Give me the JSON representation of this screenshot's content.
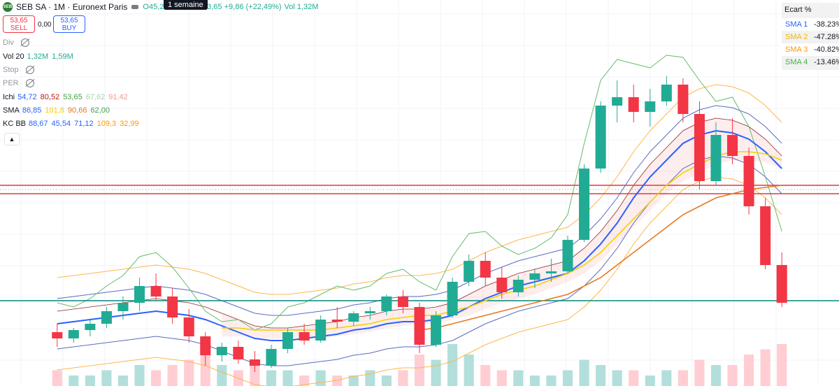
{
  "header": {
    "title": "SEB SA · 1M · Euronext Paris",
    "ohlc_text": "O45,26 H56,38 C53,65 +9,86 (+22,49%)",
    "vol_label": "Vol",
    "vol_value": "1,32M",
    "tooltip": "1 semaine",
    "logo_text": "SEB"
  },
  "trade": {
    "sell_price": "53,65",
    "sell_label": "SELL",
    "spread": "0,00",
    "buy_price": "53,65",
    "buy_label": "BUY"
  },
  "indicators": {
    "div": {
      "name": "Div"
    },
    "vol20": {
      "name": "Vol 20",
      "v1": "1,32M",
      "v2": "1,59M"
    },
    "stop": {
      "name": "Stop"
    },
    "per": {
      "name": "PER"
    },
    "ichi": {
      "name": "Ichi",
      "v1": "54,72",
      "v2": "80,52",
      "v3": "53,65",
      "v4": "67,62",
      "v5": "91,42"
    },
    "sma": {
      "name": "SMA",
      "v1": "86,85",
      "v2": "101,8",
      "v3": "90,66",
      "v4": "62,00"
    },
    "kcbb": {
      "name": "KC BB",
      "v1": "88,67",
      "v2": "45,54",
      "v3": "71,12",
      "v4": "109,3",
      "v5": "32,99"
    }
  },
  "expand_icon": "chevron-up-icon",
  "ecart": {
    "title": "Ecart %",
    "rows": [
      {
        "name": "SMA 1",
        "value": "-38.23%",
        "color": "#2962ff"
      },
      {
        "name": "SMA 2",
        "value": "-47.28%",
        "color": "#f5b400"
      },
      {
        "name": "SMA 3",
        "value": "-40.82%",
        "color": "#ff9800"
      },
      {
        "name": "SMA 4",
        "value": "-13.46%",
        "color": "#4caf50"
      }
    ]
  },
  "colors": {
    "up": "#22ab94",
    "down": "#f23645",
    "sma1": "#2962ff",
    "sma2": "#f5d000",
    "sma3": "#e8791e",
    "hline_red": "#e53935",
    "hline_green": "#00897b"
  },
  "chart_data": {
    "type": "candlestick",
    "period": "monthly",
    "ylim": [
      20,
      175
    ],
    "horizontal_levels": [
      {
        "value": 110,
        "color": "red"
      },
      {
        "value": 106,
        "color": "red"
      },
      {
        "value": 55,
        "color": "green"
      }
    ],
    "candles": [
      {
        "o": 40,
        "h": 44,
        "l": 33,
        "c": 37
      },
      {
        "o": 37,
        "h": 42,
        "l": 35,
        "c": 41
      },
      {
        "o": 41,
        "h": 46,
        "l": 38,
        "c": 44
      },
      {
        "o": 44,
        "h": 52,
        "l": 42,
        "c": 50
      },
      {
        "o": 50,
        "h": 57,
        "l": 46,
        "c": 54
      },
      {
        "o": 54,
        "h": 66,
        "l": 50,
        "c": 62
      },
      {
        "o": 62,
        "h": 68,
        "l": 55,
        "c": 57
      },
      {
        "o": 57,
        "h": 61,
        "l": 44,
        "c": 47
      },
      {
        "o": 47,
        "h": 51,
        "l": 35,
        "c": 38
      },
      {
        "o": 38,
        "h": 40,
        "l": 24,
        "c": 29
      },
      {
        "o": 29,
        "h": 35,
        "l": 26,
        "c": 33
      },
      {
        "o": 33,
        "h": 36,
        "l": 25,
        "c": 27
      },
      {
        "o": 27,
        "h": 31,
        "l": 21,
        "c": 24
      },
      {
        "o": 24,
        "h": 34,
        "l": 23,
        "c": 32
      },
      {
        "o": 32,
        "h": 42,
        "l": 30,
        "c": 40
      },
      {
        "o": 40,
        "h": 44,
        "l": 34,
        "c": 36
      },
      {
        "o": 36,
        "h": 48,
        "l": 35,
        "c": 46
      },
      {
        "o": 46,
        "h": 52,
        "l": 42,
        "c": 45
      },
      {
        "o": 45,
        "h": 50,
        "l": 43,
        "c": 49
      },
      {
        "o": 49,
        "h": 52,
        "l": 46,
        "c": 50
      },
      {
        "o": 50,
        "h": 58,
        "l": 48,
        "c": 57
      },
      {
        "o": 57,
        "h": 60,
        "l": 49,
        "c": 52
      },
      {
        "o": 52,
        "h": 54,
        "l": 30,
        "c": 34
      },
      {
        "o": 34,
        "h": 50,
        "l": 33,
        "c": 48
      },
      {
        "o": 48,
        "h": 66,
        "l": 47,
        "c": 64
      },
      {
        "o": 64,
        "h": 77,
        "l": 62,
        "c": 74
      },
      {
        "o": 74,
        "h": 78,
        "l": 62,
        "c": 66
      },
      {
        "o": 66,
        "h": 71,
        "l": 56,
        "c": 59
      },
      {
        "o": 59,
        "h": 67,
        "l": 57,
        "c": 65
      },
      {
        "o": 65,
        "h": 70,
        "l": 61,
        "c": 68
      },
      {
        "o": 68,
        "h": 75,
        "l": 64,
        "c": 69
      },
      {
        "o": 69,
        "h": 86,
        "l": 68,
        "c": 84
      },
      {
        "o": 84,
        "h": 120,
        "l": 83,
        "c": 118
      },
      {
        "o": 118,
        "h": 150,
        "l": 116,
        "c": 148
      },
      {
        "o": 148,
        "h": 160,
        "l": 140,
        "c": 152
      },
      {
        "o": 152,
        "h": 158,
        "l": 140,
        "c": 145
      },
      {
        "o": 145,
        "h": 156,
        "l": 138,
        "c": 150
      },
      {
        "o": 150,
        "h": 162,
        "l": 148,
        "c": 158
      },
      {
        "o": 158,
        "h": 161,
        "l": 140,
        "c": 144
      },
      {
        "o": 144,
        "h": 150,
        "l": 108,
        "c": 112
      },
      {
        "o": 112,
        "h": 140,
        "l": 110,
        "c": 134
      },
      {
        "o": 134,
        "h": 142,
        "l": 120,
        "c": 124
      },
      {
        "o": 124,
        "h": 128,
        "l": 96,
        "c": 100
      },
      {
        "o": 100,
        "h": 104,
        "l": 70,
        "c": 72
      },
      {
        "o": 72,
        "h": 78,
        "l": 52,
        "c": 54
      }
    ],
    "series": [
      {
        "name": "SMA 1",
        "values": [
          44,
          45,
          46,
          47,
          48,
          49,
          50,
          49,
          48,
          46,
          43,
          40,
          37,
          36,
          36,
          37,
          38,
          39,
          41,
          42,
          44,
          45,
          45,
          46,
          48,
          52,
          56,
          59,
          62,
          64,
          66,
          68,
          74,
          82,
          92,
          104,
          114,
          122,
          130,
          134,
          136,
          135,
          132,
          126,
          118
        ]
      },
      {
        "name": "SMA 2",
        "values": [
          null,
          null,
          null,
          null,
          null,
          null,
          null,
          null,
          null,
          null,
          42,
          42,
          41,
          41,
          41,
          41,
          41,
          42,
          43,
          44,
          46,
          47,
          48,
          48,
          50,
          52,
          55,
          58,
          60,
          62,
          65,
          68,
          72,
          78,
          86,
          94,
          102,
          110,
          116,
          120,
          124,
          126,
          126,
          125,
          122
        ]
      },
      {
        "name": "SMA 3",
        "values": [
          null,
          null,
          null,
          null,
          null,
          null,
          null,
          null,
          null,
          null,
          null,
          null,
          null,
          null,
          null,
          null,
          null,
          null,
          null,
          null,
          null,
          null,
          41,
          42,
          44,
          46,
          48,
          50,
          52,
          54,
          56,
          58,
          62,
          66,
          72,
          78,
          84,
          90,
          96,
          100,
          104,
          106,
          108,
          109,
          110
        ]
      }
    ],
    "volume": [
      3,
      2,
      2,
      3,
      2,
      4,
      3,
      4,
      5,
      6,
      4,
      3,
      5,
      3,
      3,
      2,
      3,
      2,
      2,
      3,
      2,
      3,
      6,
      5,
      8,
      6,
      4,
      3,
      3,
      2,
      2,
      3,
      5,
      4,
      3,
      3,
      2,
      3,
      3,
      5,
      4,
      4,
      6,
      7,
      8
    ]
  }
}
